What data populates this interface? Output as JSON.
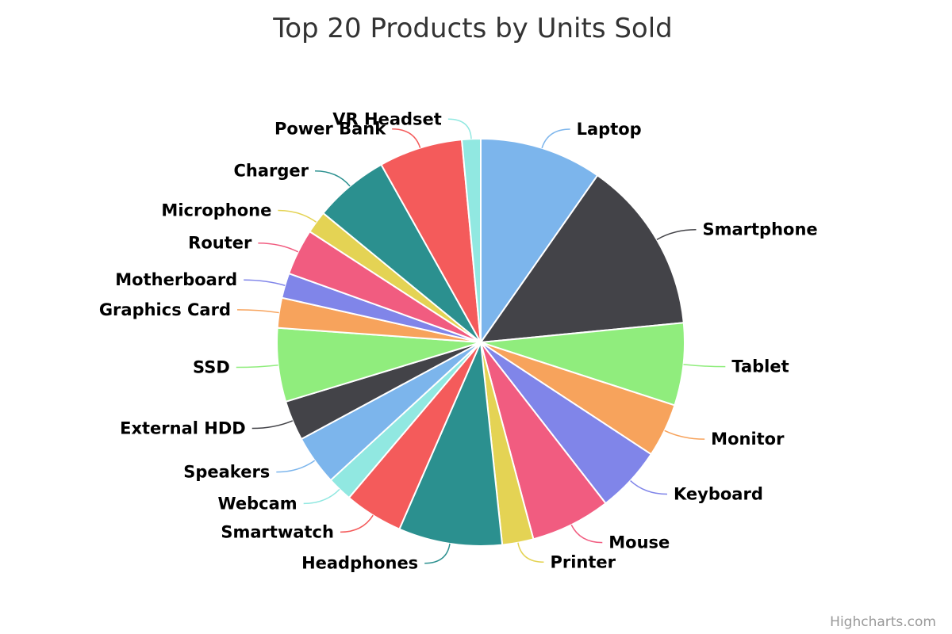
{
  "chart_data": {
    "type": "pie",
    "title": "Top 20 Products by Units Sold",
    "credits": "Highcharts.com",
    "series": [
      {
        "name": "",
        "data": [
          {
            "name": "Laptop",
            "value": 9.8,
            "color": "#7cb5ec"
          },
          {
            "name": "Smartphone",
            "value": 13.9,
            "color": "#434348"
          },
          {
            "name": "Tablet",
            "value": 6.6,
            "color": "#90ed7d"
          },
          {
            "name": "Monitor",
            "value": 4.3,
            "color": "#f7a35c"
          },
          {
            "name": "Keyboard",
            "value": 5.3,
            "color": "#8085e9"
          },
          {
            "name": "Mouse",
            "value": 6.4,
            "color": "#f15c80"
          },
          {
            "name": "Printer",
            "value": 2.5,
            "color": "#e4d354"
          },
          {
            "name": "Headphones",
            "value": 8.3,
            "color": "#2b908f"
          },
          {
            "name": "Smartwatch",
            "value": 4.7,
            "color": "#f45b5b"
          },
          {
            "name": "Webcam",
            "value": 2.0,
            "color": "#91e8e1"
          },
          {
            "name": "Speakers",
            "value": 4.0,
            "color": "#7cb5ec"
          },
          {
            "name": "External HDD",
            "value": 3.2,
            "color": "#434348"
          },
          {
            "name": "SSD",
            "value": 5.9,
            "color": "#90ed7d"
          },
          {
            "name": "Graphics Card",
            "value": 2.4,
            "color": "#f7a35c"
          },
          {
            "name": "Motherboard",
            "value": 2.0,
            "color": "#8085e9"
          },
          {
            "name": "Router",
            "value": 3.7,
            "color": "#f15c80"
          },
          {
            "name": "Microphone",
            "value": 1.8,
            "color": "#e4d354"
          },
          {
            "name": "Charger",
            "value": 6.0,
            "color": "#2b908f"
          },
          {
            "name": "Power Bank",
            "value": 6.7,
            "color": "#f45b5b"
          },
          {
            "name": "VR Headset",
            "value": 1.5,
            "color": "#91e8e1"
          }
        ]
      }
    ]
  }
}
